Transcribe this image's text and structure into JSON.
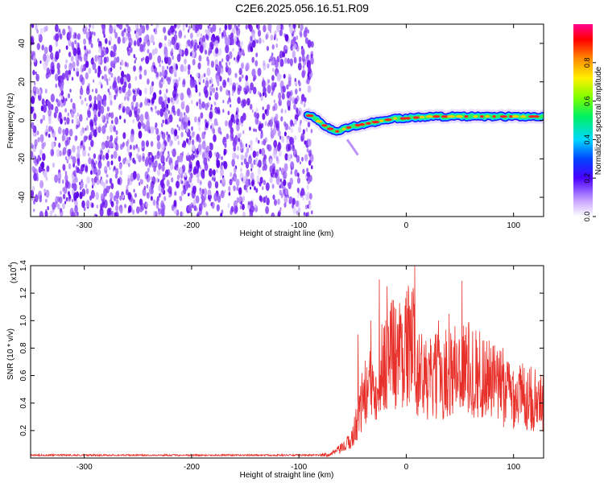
{
  "title": "C2E6.2025.056.16.51.R09",
  "chart_data": [
    {
      "type": "heatmap",
      "xlabel": "Height of straight line (km)",
      "ylabel": "Frequency (Hz)",
      "xlim": [
        -350,
        128
      ],
      "ylim": [
        -50,
        50
      ],
      "xticks": [
        -300,
        -200,
        -100,
        0,
        100
      ],
      "yticks": [
        -40,
        -20,
        0,
        20,
        40
      ],
      "noise_region_x": [
        -350,
        -92
      ],
      "ridge": {
        "x": [
          -92,
          -85,
          -78,
          -72,
          -66,
          -60,
          -50,
          -40,
          -30,
          -20,
          -10,
          0,
          10,
          20,
          30,
          40,
          50,
          60,
          70,
          80,
          90,
          100,
          110,
          120,
          128
        ],
        "y": [
          3,
          1,
          -2,
          -4,
          -6,
          -5,
          -3,
          -2,
          -1,
          0,
          1,
          1,
          1.5,
          2,
          2,
          2,
          2,
          2,
          2,
          2,
          2,
          2,
          2,
          2,
          2
        ]
      },
      "colorbar": {
        "label": "Normalized spectral amplitude",
        "range": [
          0,
          1
        ],
        "ticks": [
          "0.0",
          "0.2",
          "0.4",
          "0.6",
          "0.8"
        ]
      },
      "grid": false
    },
    {
      "type": "line",
      "xlabel": "Height of straight line (km)",
      "ylabel": "SNR (10 * v/v)",
      "y_multiplier": "(x10",
      "y_multiplier_exp": "4",
      "xlim": [
        -350,
        128
      ],
      "ylim": [
        0,
        1.4
      ],
      "xticks": [
        -300,
        -200,
        -100,
        0,
        100
      ],
      "yticks": [
        "0.2",
        "0.4",
        "0.6",
        "0.8",
        "1.0",
        "1.2",
        "1.4"
      ],
      "series": [
        {
          "color": "#e8302a",
          "x": [
            -350,
            -100,
            -80,
            -70,
            -60,
            -55,
            -50,
            -45,
            -40,
            -35,
            -30,
            -25,
            -20,
            -15,
            -10,
            0,
            8,
            10,
            15,
            20,
            30,
            40,
            50,
            55,
            60,
            70,
            80,
            90,
            100,
            110,
            120,
            128
          ],
          "y": [
            0.02,
            0.02,
            0.02,
            0.03,
            0.07,
            0.1,
            0.15,
            0.3,
            0.45,
            0.5,
            0.55,
            0.62,
            0.7,
            0.78,
            0.75,
            0.82,
            0.8,
            0.65,
            0.6,
            0.55,
            0.6,
            0.62,
            0.66,
            0.65,
            0.64,
            0.6,
            0.55,
            0.5,
            0.47,
            0.45,
            0.42,
            0.4
          ],
          "peaks": [
            [
              -45,
              0.9
            ],
            [
              -33,
              1.0
            ],
            [
              -25,
              1.3
            ],
            [
              -18,
              1.25
            ],
            [
              -12,
              1.15
            ],
            [
              -5,
              1.05
            ],
            [
              4,
              1.08
            ],
            [
              8,
              1.4
            ],
            [
              12,
              0.9
            ],
            [
              30,
              1.0
            ],
            [
              40,
              1.05
            ],
            [
              52,
              1.29
            ],
            [
              58,
              0.98
            ],
            [
              75,
              0.85
            ],
            [
              90,
              0.8
            ],
            [
              115,
              0.65
            ]
          ]
        }
      ],
      "grid": false
    }
  ]
}
